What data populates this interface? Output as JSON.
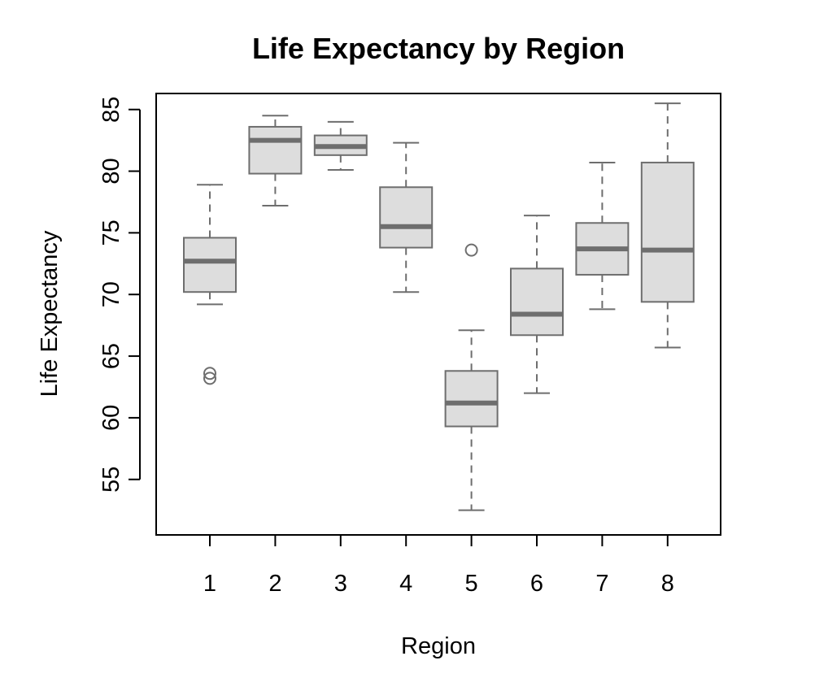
{
  "chart_data": {
    "type": "boxplot",
    "title": "Life Expectancy by Region",
    "xlabel": "Region",
    "ylabel": "Life Expectancy",
    "categories": [
      "1",
      "2",
      "3",
      "4",
      "5",
      "6",
      "7",
      "8"
    ],
    "ylim": [
      50.5,
      86.3
    ],
    "yticks": [
      55,
      60,
      65,
      70,
      75,
      80,
      85
    ],
    "grid": false,
    "boxes": [
      {
        "category": "1",
        "whisker_low": 69.2,
        "q1": 70.2,
        "median": 72.7,
        "q3": 74.6,
        "whisker_high": 78.9,
        "outliers": [
          63.2,
          63.6
        ]
      },
      {
        "category": "2",
        "whisker_low": 77.2,
        "q1": 79.8,
        "median": 82.5,
        "q3": 83.6,
        "whisker_high": 84.5,
        "outliers": []
      },
      {
        "category": "3",
        "whisker_low": 80.1,
        "q1": 81.3,
        "median": 82.0,
        "q3": 82.9,
        "whisker_high": 84.0,
        "outliers": []
      },
      {
        "category": "4",
        "whisker_low": 70.2,
        "q1": 73.8,
        "median": 75.5,
        "q3": 78.7,
        "whisker_high": 82.3,
        "outliers": []
      },
      {
        "category": "5",
        "whisker_low": 52.5,
        "q1": 59.3,
        "median": 61.2,
        "q3": 63.8,
        "whisker_high": 67.1,
        "outliers": [
          73.6
        ]
      },
      {
        "category": "6",
        "whisker_low": 62.0,
        "q1": 66.7,
        "median": 68.4,
        "q3": 72.1,
        "whisker_high": 76.4,
        "outliers": []
      },
      {
        "category": "7",
        "whisker_low": 68.8,
        "q1": 71.6,
        "median": 73.7,
        "q3": 75.8,
        "whisker_high": 80.7,
        "outliers": []
      },
      {
        "category": "8",
        "whisker_low": 65.7,
        "q1": 69.4,
        "median": 73.6,
        "q3": 80.7,
        "whisker_high": 85.5,
        "outliers": []
      }
    ],
    "colors": {
      "box_fill": "#dddddd",
      "box_stroke": "#6e6e6e",
      "median": "#6e6e6e",
      "axis": "#000000"
    }
  }
}
